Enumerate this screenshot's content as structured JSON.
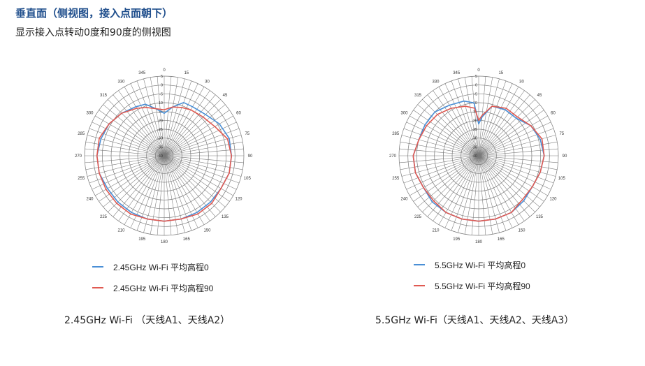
{
  "header": {
    "title": "垂直面（侧视图，接入点面朝下）",
    "subtitle": "显示接入点转动0度和90度的侧视图"
  },
  "colors": {
    "series_0": "#4a8fd6",
    "series_90": "#e05a52",
    "grid": "#7a7a7a",
    "label": "#333333"
  },
  "chart_data": [
    {
      "type": "polar-line",
      "caption": "2.45GHz Wi-Fi  （天线A1、天线A2）",
      "angle_ticks": [
        "0",
        "15",
        "30",
        "45",
        "60",
        "75",
        "90",
        "105",
        "120",
        "135",
        "150",
        "165",
        "180",
        "195",
        "210",
        "225",
        "240",
        "255",
        "270",
        "285",
        "300",
        "315",
        "330",
        "345"
      ],
      "radial_ticks": [
        "5",
        "0",
        "-5",
        "-10",
        "-15",
        "-20",
        "-25",
        "-30",
        "-35",
        "-40"
      ],
      "radial_range": [
        -40,
        5
      ],
      "grid": true,
      "legend_position": "bottom",
      "series": [
        {
          "name": "2.45GHz Wi-Fi 平均高程0",
          "angles": [
            0,
            10,
            20,
            30,
            45,
            60,
            75,
            90,
            105,
            120,
            135,
            150,
            165,
            180,
            195,
            210,
            225,
            240,
            255,
            270,
            285,
            300,
            315,
            330,
            340,
            350
          ],
          "values": [
            -16,
            -12,
            -8,
            -8,
            -7,
            -4,
            -2,
            -2,
            -2,
            -3,
            -3,
            -3,
            -3,
            -3,
            -3,
            -3,
            -3,
            -3,
            -2,
            -2,
            -3,
            -4,
            -6,
            -8,
            -9,
            -13
          ]
        },
        {
          "name": "2.45GHz Wi-Fi 平均高程90",
          "angles": [
            0,
            10,
            20,
            30,
            45,
            60,
            75,
            90,
            105,
            120,
            135,
            150,
            165,
            180,
            195,
            210,
            225,
            240,
            255,
            270,
            285,
            300,
            315,
            330,
            340,
            350
          ],
          "values": [
            -14,
            -12,
            -11,
            -10,
            -9,
            -7,
            -3,
            -2,
            -2,
            -3,
            -2,
            -2,
            -3,
            -3,
            -3,
            -2,
            -2,
            -2,
            -2,
            -2,
            -2,
            -4,
            -6,
            -9,
            -11,
            -13
          ]
        }
      ]
    },
    {
      "type": "polar-line",
      "caption": "5.5GHz Wi-Fi（天线A1、天线A2、天线A3）",
      "angle_ticks": [
        "0",
        "15",
        "30",
        "45",
        "60",
        "75",
        "90",
        "105",
        "120",
        "135",
        "150",
        "165",
        "180",
        "195",
        "210",
        "225",
        "240",
        "255",
        "270",
        "285",
        "300",
        "315",
        "330",
        "345"
      ],
      "radial_ticks": [
        "5",
        "0",
        "-5",
        "-10",
        "-15",
        "-20",
        "-25",
        "-30",
        "-35",
        "-40"
      ],
      "radial_range": [
        -40,
        5
      ],
      "grid": true,
      "legend_position": "bottom",
      "series": [
        {
          "name": "5.5GHz Wi-Fi 平均高程0",
          "angles": [
            0,
            5,
            15,
            30,
            45,
            60,
            75,
            90,
            105,
            120,
            135,
            150,
            165,
            180,
            195,
            210,
            225,
            240,
            255,
            270,
            285,
            300,
            315,
            330,
            345,
            355
          ],
          "values": [
            -22,
            -18,
            -11,
            -10,
            -10,
            -6,
            -4,
            -3,
            -4,
            -5,
            -4,
            -3,
            -3,
            -3,
            -3,
            -3,
            -3,
            -4,
            -3,
            -3,
            -5,
            -5,
            -5,
            -7,
            -8,
            -10
          ]
        },
        {
          "name": "5.5GHz Wi-Fi 平均高程90",
          "angles": [
            0,
            5,
            15,
            30,
            45,
            60,
            75,
            90,
            105,
            120,
            135,
            150,
            165,
            180,
            195,
            210,
            225,
            240,
            255,
            270,
            285,
            300,
            315,
            330,
            345,
            355
          ],
          "values": [
            -20,
            -17,
            -11,
            -9,
            -9,
            -6,
            -3,
            -3,
            -4,
            -5,
            -5,
            -3,
            -3,
            -3,
            -3,
            -3,
            -4,
            -4,
            -3,
            -3,
            -5,
            -6,
            -7,
            -9,
            -11,
            -13
          ]
        }
      ]
    }
  ]
}
